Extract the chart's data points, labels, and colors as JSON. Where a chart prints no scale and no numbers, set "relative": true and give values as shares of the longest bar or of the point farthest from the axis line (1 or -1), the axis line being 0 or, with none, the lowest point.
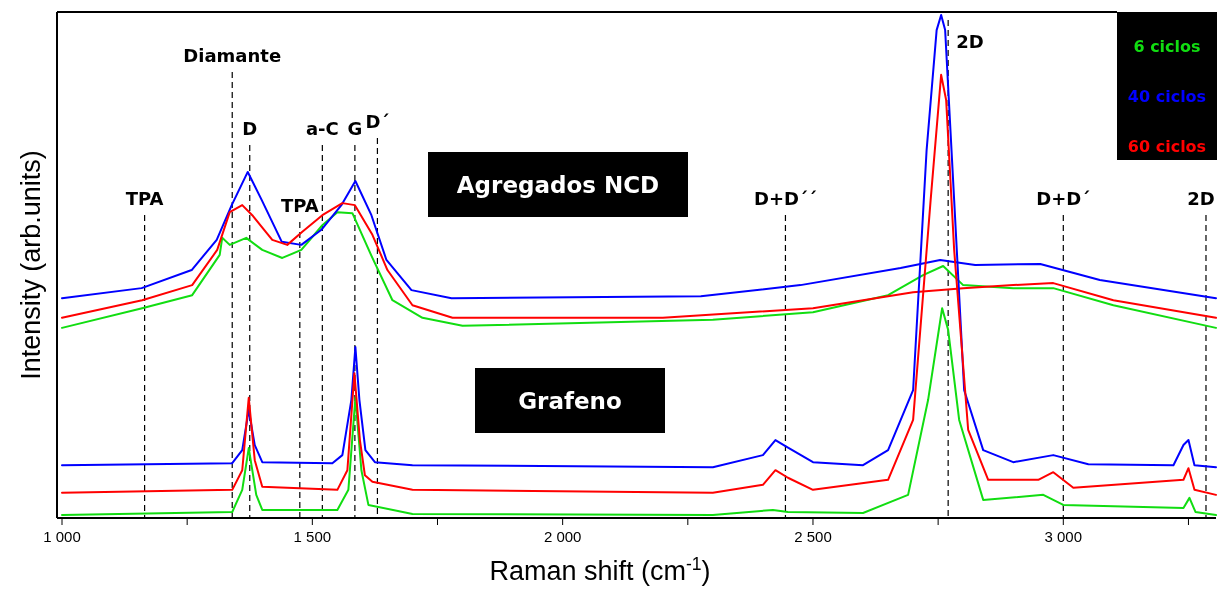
{
  "chart_data": {
    "type": "line",
    "relative": true,
    "xlabel": "Raman shift (cm$^{-1}$)",
    "ylabel": "Intensity (arb.units)",
    "xlim": [
      990,
      3305
    ],
    "xticks": [
      {
        "value": 1000,
        "label": "1 000"
      },
      {
        "value": 1250,
        "label": null
      },
      {
        "value": 1500,
        "label": "1 500"
      },
      {
        "value": 1750,
        "label": null
      },
      {
        "value": 2000,
        "label": "2 000"
      },
      {
        "value": 2250,
        "label": null
      },
      {
        "value": 2500,
        "label": "2 500"
      },
      {
        "value": 2750,
        "label": null
      },
      {
        "value": 3000,
        "label": "3 000"
      },
      {
        "value": 3250,
        "label": null
      }
    ],
    "tick_labels": "x",
    "grid": false,
    "legend": "top right",
    "line_style": "solid",
    "marker": "none",
    "annotations": [
      "Agregados NCD",
      "Grafeno"
    ],
    "ref_lines": [
      {
        "axis": "x",
        "value": 1165,
        "label": "TPA",
        "line_style": "dashed",
        "color": "#000000"
      },
      {
        "axis": "x",
        "value": 1340,
        "label": "Diamante",
        "line_style": "dashed",
        "color": "#000000"
      },
      {
        "axis": "x",
        "value": 1375,
        "label": "D",
        "line_style": "dashed",
        "color": "#000000"
      },
      {
        "axis": "x",
        "value": 1475,
        "label": "TPA",
        "line_style": "dashed",
        "color": "#000000"
      },
      {
        "axis": "x",
        "value": 1520,
        "label": "a-C",
        "line_style": "dashed",
        "color": "#000000"
      },
      {
        "axis": "x",
        "value": 1585,
        "label": "G",
        "line_style": "dashed",
        "color": "#000000"
      },
      {
        "axis": "x",
        "value": 1630,
        "label": "D´",
        "line_style": "dashed",
        "color": "#000000"
      },
      {
        "axis": "x",
        "value": 2445,
        "label": "D+D´´",
        "line_style": "dashed",
        "color": "#000000"
      },
      {
        "axis": "x",
        "value": 2770,
        "label": "2D",
        "line_style": "dashed",
        "color": "#000000"
      },
      {
        "axis": "x",
        "value": 3000,
        "label": "D+D´",
        "line_style": "dashed",
        "color": "#000000"
      },
      {
        "axis": "x",
        "value": 3285,
        "label": "2D",
        "line_style": "dashed",
        "color": "#000000"
      }
    ],
    "series": [
      {
        "name": "6 ciclos",
        "color": "#11dd11",
        "x": [
          1000,
          1160,
          1260,
          1315,
          1320,
          1335,
          1368,
          1400,
          1440,
          1478,
          1520,
          1550,
          1580,
          1620,
          1660,
          1720,
          1800,
          2300,
          2500,
          2650,
          2720,
          2760,
          2800,
          2900,
          2980,
          3100,
          3305
        ],
        "values": [
          0.378,
          0.417,
          0.443,
          0.523,
          0.557,
          0.543,
          0.557,
          0.533,
          0.517,
          0.533,
          0.582,
          0.608,
          0.606,
          0.517,
          0.433,
          0.398,
          0.382,
          0.394,
          0.409,
          0.443,
          0.483,
          0.501,
          0.463,
          0.457,
          0.457,
          0.423,
          0.378
        ]
      },
      {
        "name": "40 ciclos",
        "color": "#0000ff",
        "x": [
          1000,
          1159,
          1259,
          1309,
          1339,
          1371,
          1399,
          1439,
          1478,
          1518,
          1558,
          1586,
          1618,
          1648,
          1698,
          1778,
          2276,
          2475,
          2675,
          2754,
          2824,
          2954,
          3073,
          3305
        ],
        "values": [
          0.437,
          0.457,
          0.493,
          0.553,
          0.622,
          0.688,
          0.632,
          0.549,
          0.543,
          0.573,
          0.622,
          0.67,
          0.602,
          0.513,
          0.453,
          0.437,
          0.441,
          0.463,
          0.497,
          0.513,
          0.503,
          0.505,
          0.473,
          0.437
        ]
      },
      {
        "name": "60 ciclos",
        "color": "#ff0000",
        "x": [
          1000,
          1160,
          1260,
          1310,
          1335,
          1360,
          1380,
          1420,
          1450,
          1480,
          1520,
          1560,
          1585,
          1620,
          1650,
          1700,
          1780,
          2200,
          2500,
          2700,
          2800,
          2900,
          2980,
          3100,
          3305
        ],
        "values": [
          0.398,
          0.433,
          0.463,
          0.533,
          0.608,
          0.622,
          0.602,
          0.553,
          0.543,
          0.569,
          0.602,
          0.626,
          0.622,
          0.563,
          0.493,
          0.423,
          0.398,
          0.398,
          0.417,
          0.449,
          0.457,
          0.463,
          0.467,
          0.433,
          0.398
        ]
      },
      {
        "color": "#11dd11",
        "x": [
          1000,
          1340,
          1360,
          1373,
          1388,
          1400,
          1550,
          1572,
          1586,
          1598,
          1612,
          1700,
          2300,
          2420,
          2450,
          2600,
          2690,
          2730,
          2758,
          2770,
          2792,
          2840,
          2960,
          3000,
          3240,
          3252,
          3264,
          3305
        ],
        "values": [
          0.006,
          0.012,
          0.056,
          0.139,
          0.046,
          0.016,
          0.016,
          0.056,
          0.239,
          0.095,
          0.026,
          0.008,
          0.006,
          0.016,
          0.012,
          0.01,
          0.046,
          0.235,
          0.417,
          0.374,
          0.195,
          0.036,
          0.046,
          0.026,
          0.02,
          0.04,
          0.012,
          0.006
        ]
      },
      {
        "color": "#0000ff",
        "x": [
          1000,
          1340,
          1360,
          1373,
          1385,
          1400,
          1540,
          1560,
          1578,
          1586,
          1594,
          1606,
          1625,
          1700,
          2300,
          2400,
          2425,
          2445,
          2500,
          2600,
          2650,
          2700,
          2727,
          2747,
          2756,
          2764,
          2782,
          2802,
          2840,
          2900,
          2980,
          3050,
          3220,
          3240,
          3250,
          3262,
          3305
        ],
        "values": [
          0.105,
          0.109,
          0.135,
          0.215,
          0.145,
          0.111,
          0.109,
          0.125,
          0.235,
          0.34,
          0.235,
          0.135,
          0.111,
          0.105,
          0.101,
          0.125,
          0.155,
          0.143,
          0.111,
          0.105,
          0.135,
          0.254,
          0.732,
          0.97,
          1,
          0.97,
          0.632,
          0.254,
          0.135,
          0.111,
          0.125,
          0.107,
          0.105,
          0.145,
          0.155,
          0.105,
          0.101
        ]
      },
      {
        "color": "#ff0000",
        "x": [
          1000,
          1340,
          1360,
          1373,
          1385,
          1400,
          1550,
          1570,
          1584,
          1595,
          1605,
          1620,
          1700,
          2300,
          2400,
          2425,
          2450,
          2500,
          2650,
          2700,
          2735,
          2756,
          2766,
          2782,
          2810,
          2850,
          2950,
          2980,
          3020,
          3240,
          3250,
          3262,
          3305
        ],
        "values": [
          0.05,
          0.056,
          0.095,
          0.239,
          0.115,
          0.062,
          0.056,
          0.095,
          0.288,
          0.155,
          0.085,
          0.072,
          0.056,
          0.05,
          0.066,
          0.095,
          0.08,
          0.056,
          0.076,
          0.195,
          0.632,
          0.881,
          0.831,
          0.533,
          0.175,
          0.076,
          0.076,
          0.091,
          0.06,
          0.076,
          0.099,
          0.056,
          0.046
        ]
      }
    ]
  }
}
